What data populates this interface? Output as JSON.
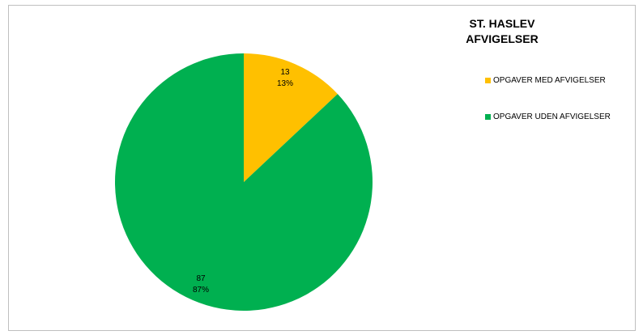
{
  "chart_data": {
    "type": "pie",
    "title_lines": [
      "ST. HASLEV",
      "AFVIGELSER"
    ],
    "categories": [
      "OPGAVER MED AFVIGELSER",
      "OPGAVER UDEN AFVIGELSER"
    ],
    "values": [
      13,
      87
    ],
    "percent_labels": [
      "13%",
      "87%"
    ],
    "colors": [
      "#FFC000",
      "#00B050"
    ],
    "legend_position": "right",
    "start_angle_deg": 0,
    "direction": "clockwise"
  }
}
